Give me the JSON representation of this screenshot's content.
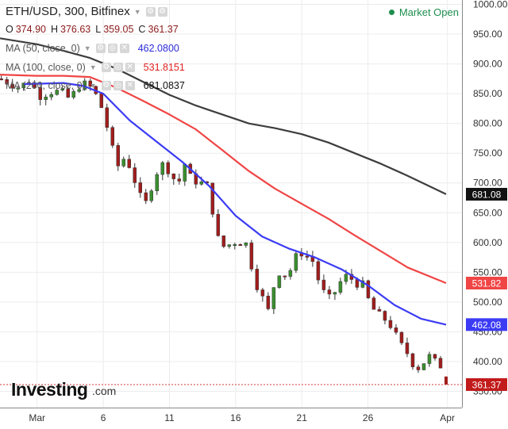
{
  "header": {
    "title": "ETH/USD, 300, Bitfinex",
    "market_status": "Market Open",
    "ohlc": {
      "open_label": "O",
      "open": "374.90",
      "high_label": "H",
      "high": "376.63",
      "low_label": "L",
      "low": "359.05",
      "close_label": "C",
      "close": "361.37"
    }
  },
  "indicators": [
    {
      "label": "MA (50, close, 0)",
      "value": "462.0800",
      "color": "#3b3bf5",
      "badge": "462.08"
    },
    {
      "label": "MA (100, close, 0)",
      "value": "531.8151",
      "color": "#f04545",
      "badge": "531.82"
    },
    {
      "label": "MA (200, close, 0)",
      "value": "681.0837",
      "color": "#3d3d3d",
      "badge": "681.08"
    }
  ],
  "brand": {
    "name": "Investing",
    "suffix": ".com"
  },
  "price_badge": {
    "value": "361.37",
    "color": "#c21b1b"
  },
  "chart_data": {
    "type": "candlestick",
    "y_ticks": [
      "1000.00",
      "950.00",
      "900.00",
      "850.00",
      "800.00",
      "750.00",
      "700.00",
      "650.00",
      "600.00",
      "550.00",
      "500.00",
      "450.00",
      "400.00",
      "350.00"
    ],
    "ylim": [
      350,
      1000
    ],
    "x_ticks": [
      "Mar",
      "6",
      "11",
      "16",
      "21",
      "26",
      "Apr"
    ],
    "x_tick_days": [
      1,
      6,
      11,
      16,
      21,
      26,
      32
    ],
    "xlim": [
      -1.8,
      33.1
    ],
    "price_path": [
      [
        -1.8,
        875
      ],
      [
        -0.5,
        860
      ],
      [
        0.5,
        872
      ],
      [
        1.2,
        845
      ],
      [
        2,
        852
      ],
      [
        2.8,
        855
      ],
      [
        3.5,
        840
      ],
      [
        4,
        860
      ],
      [
        4.7,
        868
      ],
      [
        5.3,
        855
      ],
      [
        6,
        820
      ],
      [
        6.6,
        765
      ],
      [
        7.1,
        728
      ],
      [
        7.7,
        745
      ],
      [
        8.1,
        720
      ],
      [
        8.6,
        690
      ],
      [
        9.1,
        660
      ],
      [
        9.6,
        690
      ],
      [
        10.1,
        720
      ],
      [
        10.6,
        735
      ],
      [
        11.1,
        712
      ],
      [
        11.7,
        700
      ],
      [
        12.1,
        735
      ],
      [
        12.7,
        705
      ],
      [
        13.2,
        700
      ],
      [
        13.8,
        700
      ],
      [
        14.2,
        660
      ],
      [
        14.6,
        610
      ],
      [
        15.2,
        590
      ],
      [
        15.7,
        600
      ],
      [
        16.2,
        600
      ],
      [
        16.8,
        598
      ],
      [
        17.2,
        560
      ],
      [
        17.7,
        520
      ],
      [
        18.1,
        505
      ],
      [
        18.4,
        480
      ],
      [
        18.8,
        520
      ],
      [
        19.2,
        550
      ],
      [
        19.7,
        545
      ],
      [
        20.2,
        555
      ],
      [
        20.7,
        585
      ],
      [
        21.3,
        578
      ],
      [
        21.8,
        570
      ],
      [
        22.2,
        540
      ],
      [
        22.7,
        515
      ],
      [
        23.2,
        505
      ],
      [
        23.7,
        525
      ],
      [
        24.2,
        545
      ],
      [
        24.7,
        540
      ],
      [
        25.1,
        530
      ],
      [
        25.6,
        530
      ],
      [
        26.1,
        500
      ],
      [
        26.5,
        485
      ],
      [
        27.1,
        475
      ],
      [
        27.7,
        460
      ],
      [
        28.1,
        445
      ],
      [
        28.6,
        425
      ],
      [
        29.1,
        410
      ],
      [
        29.6,
        385
      ],
      [
        30.1,
        395
      ],
      [
        30.6,
        410
      ],
      [
        31.1,
        400
      ],
      [
        31.6,
        390
      ],
      [
        31.9,
        361.37
      ]
    ],
    "ma_lines": [
      {
        "name": "MA 50",
        "color": "#3b3bf5",
        "points": [
          [
            0,
            866
          ],
          [
            3,
            868
          ],
          [
            4.5,
            863
          ],
          [
            6,
            850
          ],
          [
            8,
            805
          ],
          [
            10,
            770
          ],
          [
            12,
            735
          ],
          [
            14,
            695
          ],
          [
            16,
            645
          ],
          [
            18,
            610
          ],
          [
            20,
            590
          ],
          [
            22,
            575
          ],
          [
            24,
            555
          ],
          [
            26,
            528
          ],
          [
            28,
            495
          ],
          [
            30,
            472
          ],
          [
            31.9,
            462.08
          ]
        ]
      },
      {
        "name": "MA 100",
        "color": "#f04545",
        "points": [
          [
            -1.8,
            882
          ],
          [
            1,
            880
          ],
          [
            3,
            880
          ],
          [
            5,
            878
          ],
          [
            7,
            860
          ],
          [
            9,
            838
          ],
          [
            11,
            815
          ],
          [
            13,
            790
          ],
          [
            15,
            755
          ],
          [
            17,
            720
          ],
          [
            19,
            690
          ],
          [
            21,
            665
          ],
          [
            23,
            640
          ],
          [
            25,
            612
          ],
          [
            27,
            585
          ],
          [
            29,
            558
          ],
          [
            31.9,
            531.82
          ]
        ]
      },
      {
        "name": "MA 200",
        "color": "#3d3d3d",
        "points": [
          [
            -1.8,
            943
          ],
          [
            1,
            933
          ],
          [
            3,
            922
          ],
          [
            5,
            910
          ],
          [
            7,
            892
          ],
          [
            9,
            870
          ],
          [
            11,
            848
          ],
          [
            13,
            830
          ],
          [
            15,
            815
          ],
          [
            17,
            800
          ],
          [
            19,
            792
          ],
          [
            21,
            782
          ],
          [
            23,
            768
          ],
          [
            25,
            750
          ],
          [
            27,
            732
          ],
          [
            29,
            712
          ],
          [
            31.9,
            681.08
          ]
        ]
      }
    ]
  }
}
